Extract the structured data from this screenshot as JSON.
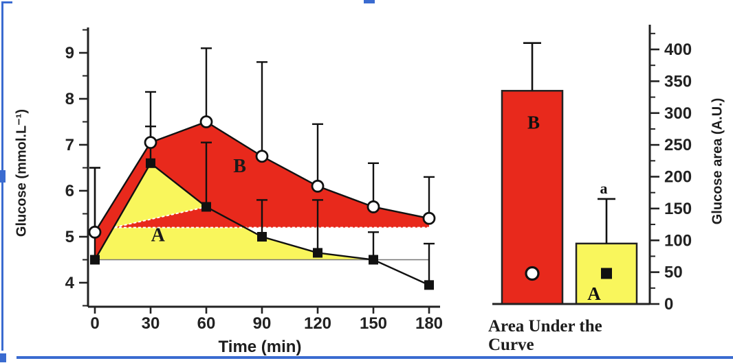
{
  "selection": {
    "color": "#3a6bd0",
    "handles": [
      "top-middle",
      "left-middle",
      "bottom-left"
    ]
  },
  "chart_data": [
    {
      "type": "line",
      "title": "",
      "xlabel": "Time (min)",
      "ylabel": "Glucose (mmol.L⁻¹)",
      "x": [
        0,
        30,
        60,
        90,
        120,
        150,
        180
      ],
      "xlim": [
        0,
        180
      ],
      "ylim": [
        3.5,
        9.6
      ],
      "y_ticks": [
        4,
        5,
        6,
        7,
        8,
        9
      ],
      "y_minor_step": 0.5,
      "grid": false,
      "baseline": 4.5,
      "red_area_floor": 5.2,
      "series": [
        {
          "name": "B",
          "marker": "open-circle",
          "line_color": "#111111",
          "area_color": "#e8291c",
          "values": [
            5.1,
            7.05,
            7.5,
            6.75,
            6.1,
            5.65,
            5.4
          ],
          "err_up": [
            6.5,
            8.15,
            9.1,
            8.8,
            7.45,
            6.6,
            6.3
          ]
        },
        {
          "name": "A",
          "marker": "filled-square",
          "line_color": "#111111",
          "area_color": "#f9f65c",
          "values": [
            4.5,
            6.6,
            5.65,
            5.0,
            4.65,
            4.5,
            3.95
          ],
          "err_up": [
            6.5,
            7.4,
            7.05,
            5.8,
            5.8,
            5.1,
            4.85
          ]
        }
      ],
      "region_labels": [
        {
          "text": "B",
          "t": 78,
          "v": 6.55
        },
        {
          "text": "A",
          "t": 34,
          "v": 5.05
        }
      ]
    },
    {
      "type": "bar",
      "categories": [
        "B",
        "A"
      ],
      "values": [
        335,
        95
      ],
      "err_up": [
        410,
        165
      ],
      "bar_colors": [
        "#e8291c",
        "#f9f65c"
      ],
      "bar_letters": [
        "B",
        "A"
      ],
      "bar_letter_v": [
        285,
        16
      ],
      "bar_markers": [
        "open-circle",
        "filled-square"
      ],
      "bar_marker_v": [
        48,
        48
      ],
      "sig_labels": [
        "",
        "a"
      ],
      "sig_label_v": [
        0,
        181
      ],
      "xlabel_lines": [
        "Area Under the",
        "Curve"
      ],
      "ylabel": "Glucose area (A.U.)",
      "ylim": [
        0,
        430
      ],
      "y_ticks": [
        0,
        50,
        100,
        150,
        200,
        250,
        300,
        350,
        400
      ],
      "y_minor_step": 25,
      "legend_position": "none"
    }
  ]
}
